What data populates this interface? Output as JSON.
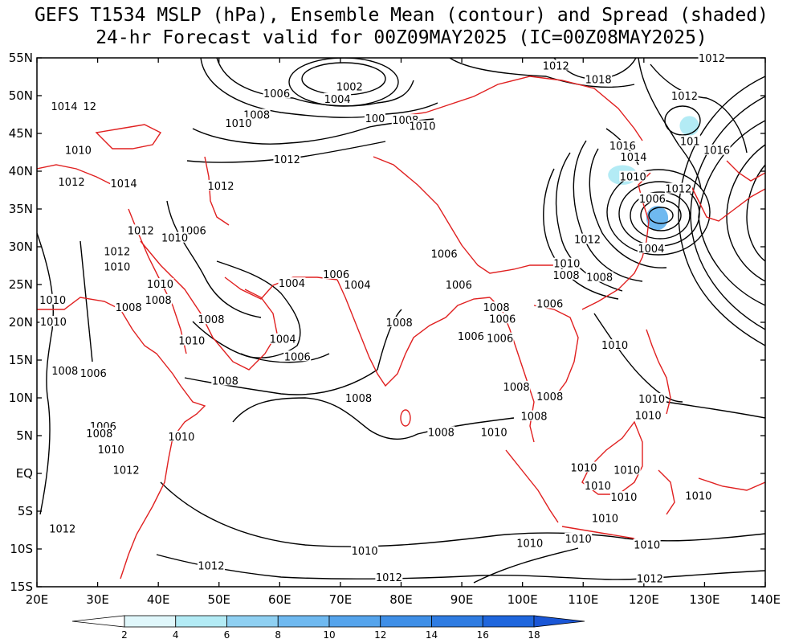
{
  "title": {
    "line1": "GEFS T1534 MSLP (hPa), Ensemble Mean (contour) and Spread (shaded)",
    "line2": "24-hr Forecast valid for 00Z09MAY2025 (IC=00Z08MAY2025)"
  },
  "map": {
    "lon_range": [
      20,
      140
    ],
    "lat_range": [
      -15,
      55
    ],
    "x_ticks": [
      "20E",
      "30E",
      "40E",
      "50E",
      "60E",
      "70E",
      "80E",
      "90E",
      "100E",
      "110E",
      "120E",
      "130E",
      "140E"
    ],
    "y_ticks": [
      "55N",
      "50N",
      "45N",
      "40N",
      "35N",
      "30N",
      "25N",
      "20N",
      "15N",
      "10N",
      "5N",
      "EQ",
      "5S",
      "10S",
      "15S"
    ],
    "coastline_color": "#e02020",
    "contour_color": "#000000"
  },
  "contour_labels": [
    {
      "text": "1012",
      "lon": 105.5,
      "lat": 54.0
    },
    {
      "text": "1018",
      "lon": 112.5,
      "lat": 52.2
    },
    {
      "text": "1012",
      "lon": 131.2,
      "lat": 55.0
    },
    {
      "text": "1012",
      "lon": 126.7,
      "lat": 50.0
    },
    {
      "text": "1002",
      "lon": 71.5,
      "lat": 51.2
    },
    {
      "text": "1004",
      "lon": 69.5,
      "lat": 49.6
    },
    {
      "text": "1006",
      "lon": 59.5,
      "lat": 50.3
    },
    {
      "text": "1008",
      "lon": 56.2,
      "lat": 47.5
    },
    {
      "text": "1010",
      "lon": 53.2,
      "lat": 46.4
    },
    {
      "text": "1008",
      "lon": 80.7,
      "lat": 46.8
    },
    {
      "text": "1010",
      "lon": 83.5,
      "lat": 46.0
    },
    {
      "text": "100",
      "lon": 75.7,
      "lat": 47.0
    },
    {
      "text": "1014",
      "lon": 24.5,
      "lat": 48.6
    },
    {
      "text": "12",
      "lon": 28.7,
      "lat": 48.6
    },
    {
      "text": "1010",
      "lon": 26.8,
      "lat": 42.8
    },
    {
      "text": "1012",
      "lon": 61.2,
      "lat": 41.6
    },
    {
      "text": "1012",
      "lon": 25.7,
      "lat": 38.6
    },
    {
      "text": "1014",
      "lon": 34.3,
      "lat": 38.4
    },
    {
      "text": "1012",
      "lon": 50.3,
      "lat": 38.1
    },
    {
      "text": "1016",
      "lon": 116.5,
      "lat": 43.4
    },
    {
      "text": "1014",
      "lon": 118.3,
      "lat": 41.9
    },
    {
      "text": "1010",
      "lon": 118.2,
      "lat": 39.3
    },
    {
      "text": "101",
      "lon": 127.6,
      "lat": 44.0
    },
    {
      "text": "1016",
      "lon": 132.0,
      "lat": 42.8
    },
    {
      "text": "1012",
      "lon": 125.7,
      "lat": 37.7
    },
    {
      "text": "1006",
      "lon": 121.4,
      "lat": 36.4
    },
    {
      "text": "1004",
      "lon": 121.2,
      "lat": 29.8
    },
    {
      "text": "1012",
      "lon": 110.7,
      "lat": 31.0
    },
    {
      "text": "1012",
      "lon": 37.1,
      "lat": 32.2
    },
    {
      "text": "1006",
      "lon": 45.7,
      "lat": 32.2
    },
    {
      "text": "1010",
      "lon": 42.7,
      "lat": 31.2
    },
    {
      "text": "1012",
      "lon": 33.2,
      "lat": 29.4
    },
    {
      "text": "1010",
      "lon": 33.2,
      "lat": 27.4
    },
    {
      "text": "1010",
      "lon": 40.3,
      "lat": 25.1
    },
    {
      "text": "1008",
      "lon": 40.0,
      "lat": 23.0
    },
    {
      "text": "1008",
      "lon": 35.1,
      "lat": 22.0
    },
    {
      "text": "1010",
      "lon": 22.6,
      "lat": 23.0
    },
    {
      "text": "1010",
      "lon": 22.7,
      "lat": 20.1
    },
    {
      "text": "1008",
      "lon": 48.7,
      "lat": 20.4
    },
    {
      "text": "1010",
      "lon": 45.5,
      "lat": 17.6
    },
    {
      "text": "1004",
      "lon": 62.0,
      "lat": 25.2
    },
    {
      "text": "1006",
      "lon": 69.3,
      "lat": 26.4
    },
    {
      "text": "1004",
      "lon": 72.8,
      "lat": 25.0
    },
    {
      "text": "1004",
      "lon": 60.5,
      "lat": 17.8
    },
    {
      "text": "1006",
      "lon": 62.9,
      "lat": 15.5
    },
    {
      "text": "1006",
      "lon": 87.1,
      "lat": 29.1
    },
    {
      "text": "1006",
      "lon": 89.5,
      "lat": 25.0
    },
    {
      "text": "1008",
      "lon": 79.7,
      "lat": 20.0
    },
    {
      "text": "1010",
      "lon": 107.3,
      "lat": 27.8
    },
    {
      "text": "1008",
      "lon": 107.2,
      "lat": 26.3
    },
    {
      "text": "1008",
      "lon": 112.7,
      "lat": 26.0
    },
    {
      "text": "1008",
      "lon": 95.7,
      "lat": 22.0
    },
    {
      "text": "1006",
      "lon": 96.7,
      "lat": 20.5
    },
    {
      "text": "1006",
      "lon": 104.5,
      "lat": 22.5
    },
    {
      "text": "1006",
      "lon": 91.5,
      "lat": 18.2
    },
    {
      "text": "1006",
      "lon": 96.3,
      "lat": 17.9
    },
    {
      "text": "1010",
      "lon": 115.2,
      "lat": 17.0
    },
    {
      "text": "1008",
      "lon": 24.6,
      "lat": 13.6
    },
    {
      "text": "1006",
      "lon": 29.3,
      "lat": 13.3
    },
    {
      "text": "1008",
      "lon": 51.0,
      "lat": 12.3
    },
    {
      "text": "1008",
      "lon": 73.0,
      "lat": 10.0
    },
    {
      "text": "1008",
      "lon": 99.0,
      "lat": 11.5
    },
    {
      "text": "1008",
      "lon": 104.5,
      "lat": 10.2
    },
    {
      "text": "1008",
      "lon": 101.9,
      "lat": 7.6
    },
    {
      "text": "1010",
      "lon": 121.3,
      "lat": 9.9
    },
    {
      "text": "1010",
      "lon": 120.7,
      "lat": 7.7
    },
    {
      "text": "1006",
      "lon": 30.9,
      "lat": 6.3
    },
    {
      "text": "1008",
      "lon": 30.3,
      "lat": 5.3
    },
    {
      "text": "1010",
      "lon": 32.2,
      "lat": 3.2
    },
    {
      "text": "1010",
      "lon": 43.8,
      "lat": 4.9
    },
    {
      "text": "1012",
      "lon": 34.7,
      "lat": 0.5
    },
    {
      "text": "1008",
      "lon": 86.6,
      "lat": 5.5
    },
    {
      "text": "1010",
      "lon": 95.3,
      "lat": 5.5
    },
    {
      "text": "1010",
      "lon": 110.1,
      "lat": 0.8
    },
    {
      "text": "1010",
      "lon": 117.2,
      "lat": 0.5
    },
    {
      "text": "1010",
      "lon": 112.4,
      "lat": -1.6
    },
    {
      "text": "1010",
      "lon": 116.7,
      "lat": -3.1
    },
    {
      "text": "1010",
      "lon": 129.0,
      "lat": -2.9
    },
    {
      "text": "1010",
      "lon": 113.6,
      "lat": -5.9
    },
    {
      "text": "1010",
      "lon": 109.2,
      "lat": -8.6
    },
    {
      "text": "1010",
      "lon": 120.5,
      "lat": -9.4
    },
    {
      "text": "1012",
      "lon": 24.2,
      "lat": -7.3
    },
    {
      "text": "1010",
      "lon": 74.0,
      "lat": -10.2
    },
    {
      "text": "1010",
      "lon": 101.2,
      "lat": -9.2
    },
    {
      "text": "1012",
      "lon": 48.7,
      "lat": -12.2
    },
    {
      "text": "1012",
      "lon": 78.0,
      "lat": -13.7
    },
    {
      "text": "1012",
      "lon": 121.0,
      "lat": -13.9
    }
  ],
  "spread_shaded": [
    {
      "lon": 122.2,
      "lat": 33.8,
      "rx_deg": 1.8,
      "ry_deg": 1.6,
      "level": 4
    },
    {
      "lon": 116.5,
      "lat": 39.5,
      "rx_deg": 2.4,
      "ry_deg": 1.3,
      "level": 2
    },
    {
      "lon": 127.5,
      "lat": 46.0,
      "rx_deg": 1.6,
      "ry_deg": 1.3,
      "level": 2
    }
  ],
  "colorbar": {
    "labels": [
      "2",
      "4",
      "6",
      "8",
      "10",
      "12",
      "14",
      "16",
      "18"
    ],
    "colors": [
      "#ffffff",
      "#e0f7fb",
      "#b3ebf5",
      "#8fd0f2",
      "#6fb9f0",
      "#55a4ec",
      "#3f8fe7",
      "#2f7ce2",
      "#1f66dd",
      "#1a56d6"
    ]
  }
}
